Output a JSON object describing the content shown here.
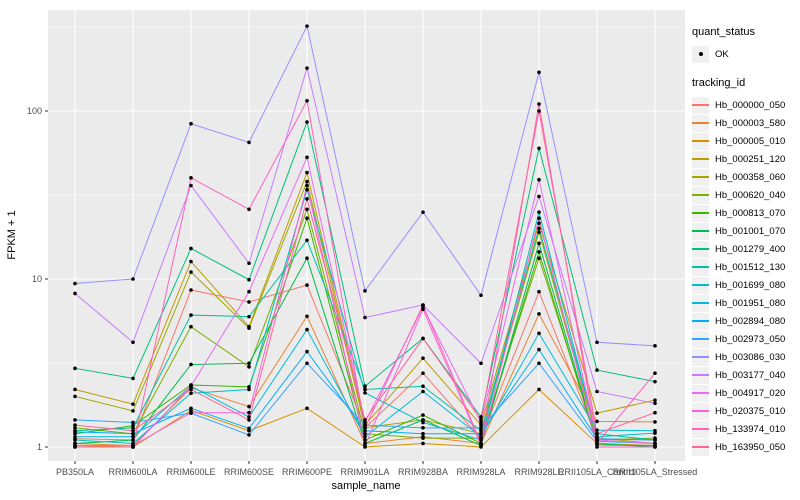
{
  "figure": {
    "background": "#FFFFFF",
    "panel_background": "#EBEBEB",
    "grid_color": "#FFFFFF",
    "tick_label_color": "#4D4D4D",
    "axis_title_color": "#000000",
    "point_color": "#000000"
  },
  "legend": {
    "quant_title": "quant_status",
    "ok_label": "OK",
    "tracking_title": "tracking_id"
  },
  "chart_data": {
    "type": "line",
    "title": "",
    "xlabel": "sample_name",
    "ylabel": "FPKM + 1",
    "y_scale": "log10",
    "ylim": [
      1,
      400
    ],
    "y_ticks": [
      1,
      10,
      100
    ],
    "y_minor_ticks": [
      3.162,
      31.62,
      316.2
    ],
    "grid": true,
    "legend_position": "right",
    "markers": "black points at every observation (quant_status OK)",
    "categories": [
      "PB350LA",
      "RRIM600LA",
      "RRIM600LE",
      "RRIM600SE",
      "RRIM600PE",
      "RRIM901LA",
      "RRIM928BA",
      "RRIM928LA",
      "RRIM928LE",
      "RRII105LA_Control",
      "RRII105LA_Stressed"
    ],
    "series": [
      {
        "name": "Hb_000000_050",
        "color": "#F8766D",
        "values": [
          1.12,
          1.1,
          8.6,
          7.3,
          9.2,
          1.3,
          2.75,
          1.12,
          8.4,
          1.12,
          1.1
        ]
      },
      {
        "name": "Hb_000003_580",
        "color": "#EA8331",
        "values": [
          1.05,
          1.02,
          2.25,
          1.74,
          6.0,
          1.05,
          1.15,
          1.05,
          6.2,
          1.42,
          1.41
        ]
      },
      {
        "name": "Hb_000005_010",
        "color": "#D89000",
        "values": [
          1.02,
          1.0,
          1.65,
          1.25,
          1.7,
          1.0,
          1.05,
          1.0,
          2.2,
          1.05,
          1.02
        ]
      },
      {
        "name": "Hb_000251_120",
        "color": "#C09B00",
        "values": [
          2.2,
          1.8,
          12.7,
          5.2,
          43,
          1.35,
          3.38,
          1.35,
          21.5,
          1.59,
          1.9
        ]
      },
      {
        "name": "Hb_000358_060",
        "color": "#A3A500",
        "values": [
          2.0,
          1.64,
          11.0,
          5.1,
          38,
          1.3,
          1.45,
          1.2,
          19.0,
          1.13,
          1.05
        ]
      },
      {
        "name": "Hb_000620_040",
        "color": "#7CAE00",
        "values": [
          1.3,
          1.2,
          5.2,
          3.0,
          26,
          1.2,
          1.13,
          1.13,
          13.3,
          1.1,
          1.13
        ]
      },
      {
        "name": "Hb_000813_070",
        "color": "#39B600",
        "values": [
          1.2,
          1.34,
          2.34,
          2.28,
          23,
          1.1,
          1.55,
          1.05,
          14.5,
          1.03,
          1.02
        ]
      },
      {
        "name": "Hb_001001_070",
        "color": "#00BB4E",
        "values": [
          1.05,
          1.1,
          3.1,
          3.15,
          13.3,
          1.05,
          1.45,
          1.02,
          16.3,
          1.05,
          1.0
        ]
      },
      {
        "name": "Hb_001279_400",
        "color": "#00BF7D",
        "values": [
          2.94,
          2.56,
          15.2,
          9.9,
          86,
          2.3,
          4.43,
          1.51,
          60,
          2.87,
          2.45
        ]
      },
      {
        "name": "Hb_001512_130",
        "color": "#00C1A3",
        "values": [
          1.25,
          1.3,
          6.1,
          5.97,
          17,
          2.2,
          2.3,
          1.25,
          20,
          1.2,
          1.1
        ]
      },
      {
        "name": "Hb_001699_080",
        "color": "#00BFC4",
        "values": [
          1.1,
          1.05,
          2.09,
          2.2,
          34,
          2.1,
          1.4,
          1.1,
          25,
          1.15,
          1.21
        ]
      },
      {
        "name": "Hb_001951_080",
        "color": "#00BADE",
        "values": [
          1.15,
          1.15,
          2.3,
          1.51,
          5.0,
          1.15,
          2.14,
          1.15,
          4.75,
          1.26,
          1.25
        ]
      },
      {
        "name": "Hb_002894_080",
        "color": "#00B0F6",
        "values": [
          1.23,
          1.2,
          1.7,
          1.29,
          3.7,
          1.25,
          1.2,
          1.2,
          3.8,
          1.12,
          1.1
        ]
      },
      {
        "name": "Hb_002973_050",
        "color": "#35A2FF",
        "values": [
          1.45,
          1.4,
          1.59,
          1.18,
          3.15,
          1.35,
          1.3,
          1.3,
          3.15,
          1.08,
          1.05
        ]
      },
      {
        "name": "Hb_003086_030",
        "color": "#9590FF",
        "values": [
          9.4,
          10.0,
          84,
          65,
          320,
          8.5,
          25,
          8.0,
          170,
          4.2,
          4.0
        ]
      },
      {
        "name": "Hb_003177_040",
        "color": "#C77CFF",
        "values": [
          8.2,
          4.2,
          36,
          12.4,
          180,
          5.9,
          7.0,
          3.15,
          31,
          2.14,
          1.82
        ]
      },
      {
        "name": "Hb_004917_020",
        "color": "#E76BF3",
        "values": [
          1.0,
          1.0,
          2.3,
          8.4,
          53,
          1.4,
          6.8,
          1.4,
          39,
          1.1,
          1.05
        ]
      },
      {
        "name": "Hb_020375_010",
        "color": "#FA62DB",
        "values": [
          1.02,
          1.02,
          1.6,
          1.6,
          36,
          1.02,
          6.6,
          1.02,
          23,
          1.0,
          1.0
        ]
      },
      {
        "name": "Hb_133974_010",
        "color": "#FF62BC",
        "values": [
          1.0,
          1.0,
          40,
          26,
          115,
          1.3,
          7.0,
          1.05,
          110,
          1.05,
          2.75
        ]
      },
      {
        "name": "Hb_163950_050",
        "color": "#FF6599",
        "values": [
          1.35,
          1.25,
          2.2,
          1.45,
          30,
          1.45,
          4.43,
          1.45,
          100,
          1.2,
          1.6
        ]
      }
    ]
  }
}
